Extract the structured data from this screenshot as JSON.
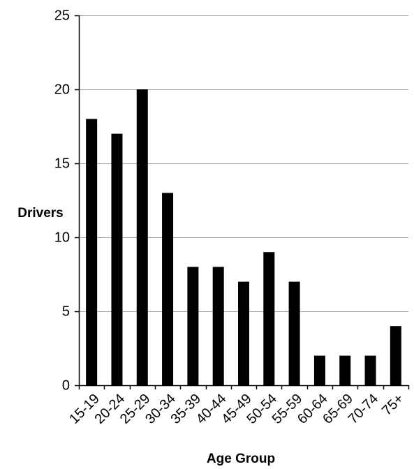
{
  "chart_data": {
    "type": "bar",
    "title": "",
    "xlabel": "Age Group",
    "ylabel": "Drivers",
    "categories": [
      "15-19",
      "20-24",
      "25-29",
      "30-34",
      "35-39",
      "40-44",
      "45-49",
      "50-54",
      "55-59",
      "60-64",
      "65-69",
      "70-74",
      "75+"
    ],
    "values": [
      18,
      17,
      20,
      13,
      8,
      8,
      7,
      9,
      7,
      2,
      2,
      2,
      4
    ],
    "ylim": [
      0,
      25
    ],
    "yticks": [
      0,
      5,
      10,
      15,
      20,
      25
    ],
    "grid": "horizontal",
    "legend": "none",
    "colors": {
      "bar": "#000000",
      "grid": "#a6a6a6",
      "axis": "#000000"
    }
  }
}
